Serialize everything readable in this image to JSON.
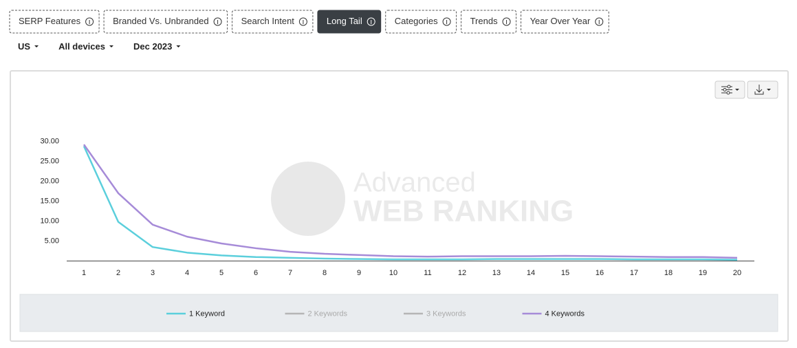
{
  "tabs": [
    {
      "label": "SERP Features",
      "active": false
    },
    {
      "label": "Branded Vs. Unbranded",
      "active": false
    },
    {
      "label": "Search Intent",
      "active": false
    },
    {
      "label": "Long Tail",
      "active": true
    },
    {
      "label": "Categories",
      "active": false
    },
    {
      "label": "Trends",
      "active": false
    },
    {
      "label": "Year Over Year",
      "active": false
    }
  ],
  "filters": [
    "US",
    "All devices",
    "Dec 2023"
  ],
  "watermark": [
    "Advanced",
    "WEB RANKING"
  ],
  "chart_data": {
    "type": "line",
    "categories": [
      1,
      2,
      3,
      4,
      5,
      6,
      7,
      8,
      9,
      10,
      11,
      12,
      13,
      14,
      15,
      16,
      17,
      18,
      19,
      20
    ],
    "series": [
      {
        "name": "1 Keyword",
        "color": "#5bcfdc",
        "visible": true,
        "values": [
          28.8,
          9.8,
          3.5,
          2.1,
          1.4,
          1.0,
          0.8,
          0.6,
          0.5,
          0.4,
          0.4,
          0.4,
          0.5,
          0.5,
          0.5,
          0.5,
          0.4,
          0.4,
          0.4,
          0.3
        ]
      },
      {
        "name": "2 Keywords",
        "color": "#b5b5b5",
        "visible": false,
        "values": [
          null,
          null,
          null,
          null,
          null,
          null,
          null,
          null,
          null,
          null,
          null,
          null,
          null,
          null,
          null,
          null,
          null,
          null,
          null,
          null
        ]
      },
      {
        "name": "3 Keywords",
        "color": "#b5b5b5",
        "visible": false,
        "values": [
          null,
          null,
          null,
          null,
          null,
          null,
          null,
          null,
          null,
          null,
          null,
          null,
          null,
          null,
          null,
          null,
          null,
          null,
          null,
          null
        ]
      },
      {
        "name": "4 Keywords",
        "color": "#a68bd8",
        "visible": true,
        "values": [
          29.2,
          17.0,
          9.1,
          6.1,
          4.4,
          3.2,
          2.3,
          1.8,
          1.5,
          1.2,
          1.1,
          1.2,
          1.2,
          1.2,
          1.3,
          1.2,
          1.1,
          1.0,
          1.0,
          0.8
        ]
      }
    ],
    "ylim": [
      0,
      30
    ],
    "yticks": [
      {
        "value": 5,
        "label": "5.00"
      },
      {
        "value": 10,
        "label": "10.00"
      },
      {
        "value": 15,
        "label": "15.00"
      },
      {
        "value": 20,
        "label": "20.00"
      },
      {
        "value": 25,
        "label": "25.00"
      },
      {
        "value": 30,
        "label": "30.00"
      }
    ],
    "grid": false
  }
}
